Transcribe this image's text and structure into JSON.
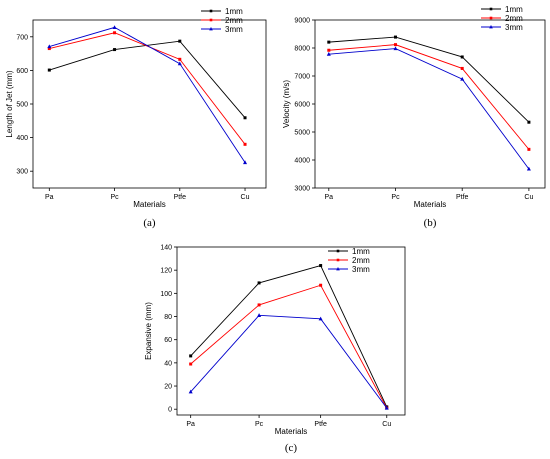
{
  "chart_data": [
    {
      "type": "line",
      "panel_label": "(a)",
      "categories": [
        "Pa",
        "Pc",
        "Ptfe",
        "Cu"
      ],
      "xlabel": "Materials",
      "ylabel": "Length of Jet (mm)",
      "ylim": [
        250,
        750
      ],
      "yticks": [
        300,
        400,
        500,
        600,
        700
      ],
      "grid": false,
      "legend_position": "top-right",
      "series": [
        {
          "name": "1mm",
          "color": "#000000",
          "values": [
            601,
            662,
            687,
            459
          ]
        },
        {
          "name": "2mm",
          "color": "#ff0000",
          "values": [
            665,
            712,
            633,
            380
          ]
        },
        {
          "name": "3mm",
          "color": "#0000cc",
          "values": [
            671,
            728,
            620,
            326
          ]
        }
      ]
    },
    {
      "type": "line",
      "panel_label": "(b)",
      "categories": [
        "Pa",
        "Pc",
        "Ptfe",
        "Cu"
      ],
      "xlabel": "Materials",
      "ylabel": "Velocity (m/s)",
      "ylim": [
        3000,
        9000
      ],
      "yticks": [
        3000,
        4000,
        5000,
        6000,
        7000,
        8000,
        9000
      ],
      "grid": false,
      "legend_position": "top-right",
      "series": [
        {
          "name": "1mm",
          "color": "#000000",
          "values": [
            8210,
            8390,
            7680,
            5350
          ]
        },
        {
          "name": "2mm",
          "color": "#ff0000",
          "values": [
            7920,
            8120,
            7270,
            4380
          ]
        },
        {
          "name": "3mm",
          "color": "#0000cc",
          "values": [
            7780,
            7980,
            6890,
            3680
          ]
        }
      ]
    },
    {
      "type": "line",
      "panel_label": "(c)",
      "categories": [
        "Pa",
        "Pc",
        "Ptfe",
        "Cu"
      ],
      "xlabel": "Materials",
      "ylabel": "Expansive (mm)",
      "ylim": [
        -5,
        140
      ],
      "yticks": [
        0,
        20,
        40,
        60,
        80,
        100,
        120,
        140
      ],
      "grid": false,
      "legend_position": "top-right",
      "series": [
        {
          "name": "1mm",
          "color": "#000000",
          "values": [
            46,
            109,
            124,
            2
          ]
        },
        {
          "name": "2mm",
          "color": "#ff0000",
          "values": [
            39,
            90,
            107,
            1
          ]
        },
        {
          "name": "3mm",
          "color": "#0000cc",
          "values": [
            15,
            81,
            78,
            1
          ]
        }
      ]
    }
  ]
}
